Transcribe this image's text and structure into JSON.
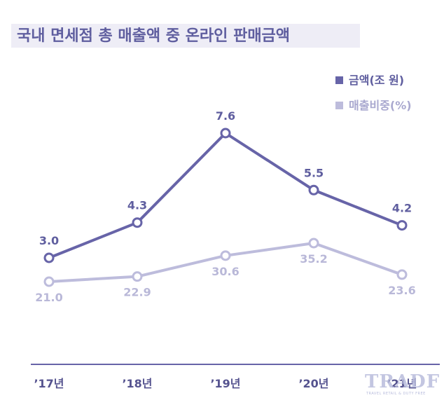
{
  "chart_data": {
    "type": "line",
    "title": "국내 면세점 총 매출액 중 온라인 판매금액",
    "categories": [
      "’17년",
      "’18년",
      "’19년",
      "’20년",
      "’21년"
    ],
    "series": [
      {
        "name": "금액(조 원)",
        "values": [
          3.0,
          4.3,
          7.6,
          5.5,
          4.2
        ],
        "labels": [
          "3.0",
          "4.3",
          "7.6",
          "5.5",
          "4.2"
        ],
        "color": "#6764a8"
      },
      {
        "name": "매출비중(%)",
        "values": [
          21.0,
          22.9,
          30.6,
          35.2,
          23.6
        ],
        "labels": [
          "21.0",
          "22.9",
          "30.6",
          "35.2",
          "23.6"
        ],
        "color": "#bdbcdc"
      }
    ],
    "legend_position": "top-right",
    "grid": false,
    "y_axis_visible": false
  },
  "watermark": {
    "text": "TRADF",
    "subtext": "TRAVEL RETAIL & DUTY FREE",
    "color": "#b8bcdc"
  },
  "colors": {
    "title": "#5f5e9f",
    "title_background": "#eeedf6",
    "axis": "#6764a8"
  }
}
